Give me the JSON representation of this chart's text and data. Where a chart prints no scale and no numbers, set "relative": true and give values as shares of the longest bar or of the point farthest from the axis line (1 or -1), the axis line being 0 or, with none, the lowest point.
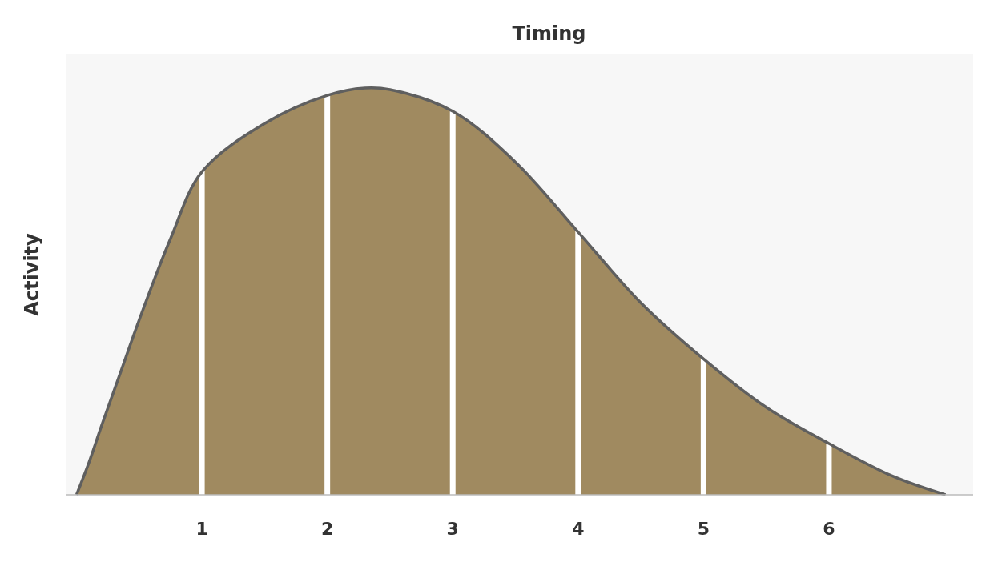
{
  "chart_data": {
    "type": "area",
    "title": "Timing",
    "ylabel": "Activity",
    "relative": true,
    "x": [
      0,
      0.1,
      0.2,
      0.35,
      0.5,
      0.75,
      1,
      1.5,
      2,
      2.3,
      2.5,
      3,
      3.5,
      4,
      4.5,
      5,
      5.5,
      6,
      6.5,
      6.93
    ],
    "series": [
      {
        "color": "#a08a60",
        "values": [
          0,
          0.08,
          0.17,
          0.3,
          0.43,
          0.63,
          0.794,
          0.913,
          0.982,
          1,
          0.996,
          0.943,
          0.818,
          0.646,
          0.472,
          0.334,
          0.215,
          0.126,
          0.047,
          0
        ]
      }
    ],
    "xlim": [
      -0.08,
      7.15
    ],
    "xticks": [
      1,
      2,
      3,
      4,
      5,
      6
    ],
    "ref_lines": [
      {
        "axis": "x",
        "value": 1,
        "color": "#ffffff"
      },
      {
        "axis": "x",
        "value": 2,
        "color": "#ffffff"
      },
      {
        "axis": "x",
        "value": 3,
        "color": "#ffffff"
      },
      {
        "axis": "x",
        "value": 4,
        "color": "#ffffff"
      },
      {
        "axis": "x",
        "value": 5,
        "color": "#ffffff"
      },
      {
        "axis": "x",
        "value": 6,
        "color": "#ffffff"
      }
    ]
  }
}
